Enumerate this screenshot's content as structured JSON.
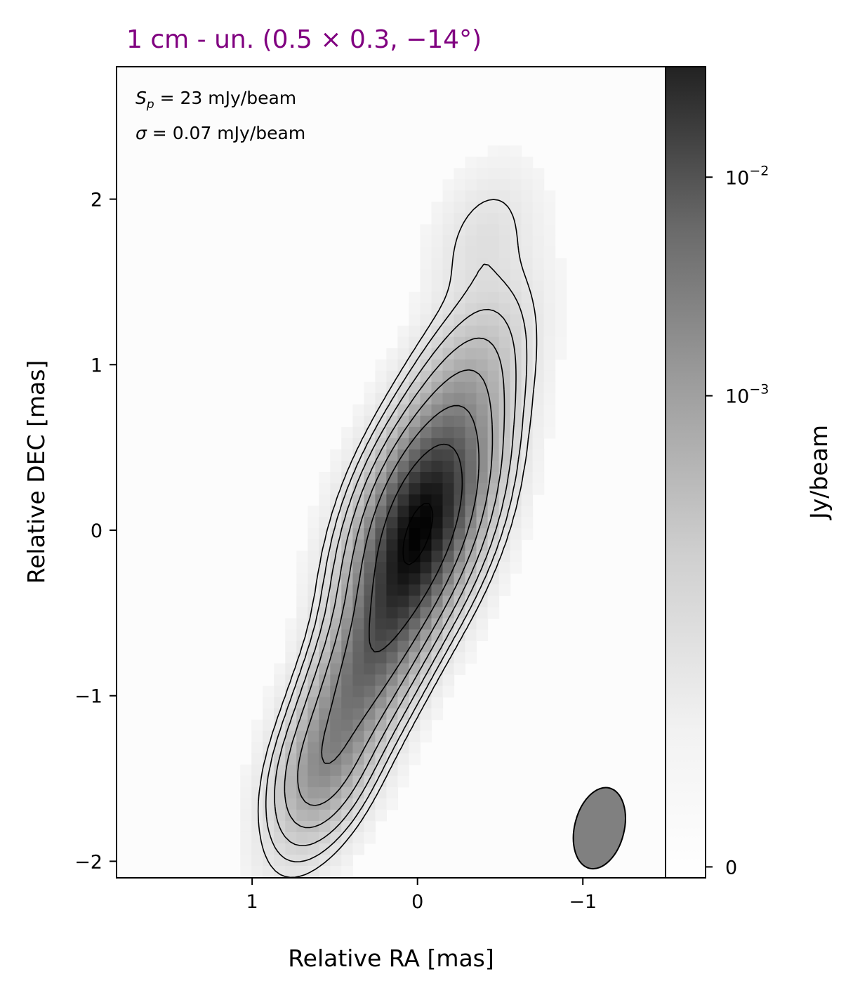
{
  "chart_data": {
    "type": "heatmap",
    "title": "1 cm - un. (0.5 × 0.3, −14°)",
    "title_color": "#800080",
    "xlabel": "Relative RA [mas]",
    "ylabel": "Relative DEC [mas]",
    "colorbar_label": "Jy/beam",
    "colormap": "gray_r",
    "colorbar_scale": "symlog",
    "annotation_lines": [
      "S_p = 23 mJy/beam",
      "σ = 0.07 mJy/beam"
    ],
    "xlim": [
      1.82,
      -1.5
    ],
    "ylim": [
      -2.1,
      2.8
    ],
    "x_ticks": [
      1,
      0,
      -1
    ],
    "x_tick_labels": [
      "1",
      "0",
      "−1"
    ],
    "y_ticks": [
      -2,
      -1,
      0,
      1,
      2
    ],
    "y_tick_labels": [
      "−2",
      "−1",
      "0",
      "1",
      "2"
    ],
    "colorbar_ticks": [
      {
        "value": 0.01,
        "label": "10",
        "exp": "−2"
      },
      {
        "value": 0.001,
        "label": "10",
        "exp": "−3"
      },
      {
        "value": 0,
        "label": "0",
        "exp": ""
      }
    ],
    "peak_jy_per_beam": 0.023,
    "rms_jy_per_beam": 7e-05,
    "beam": {
      "major_mas": 0.5,
      "minor_mas": 0.3,
      "pa_deg": -14,
      "center_ra": -1.1,
      "center_dec": -1.8
    },
    "components": [
      {
        "ra": -0.02,
        "dec": 0.05,
        "peak": 0.023,
        "sigma_major": 0.36,
        "sigma_minor": 0.17
      },
      {
        "ra": 0.13,
        "dec": -0.45,
        "peak": 0.0105,
        "sigma_major": 0.4,
        "sigma_minor": 0.14
      },
      {
        "ra": 0.42,
        "dec": -1.05,
        "peak": 0.0062,
        "sigma_major": 0.42,
        "sigma_minor": 0.14
      },
      {
        "ra": -0.2,
        "dec": 0.6,
        "peak": 0.0042,
        "sigma_major": 0.42,
        "sigma_minor": 0.16
      },
      {
        "ra": 0.58,
        "dec": -1.45,
        "peak": 0.0024,
        "sigma_major": 0.22,
        "sigma_minor": 0.13
      },
      {
        "ra": -0.4,
        "dec": 1.75,
        "peak": 0.00035,
        "sigma_major": 0.25,
        "sigma_minor": 0.15
      }
    ]
  }
}
